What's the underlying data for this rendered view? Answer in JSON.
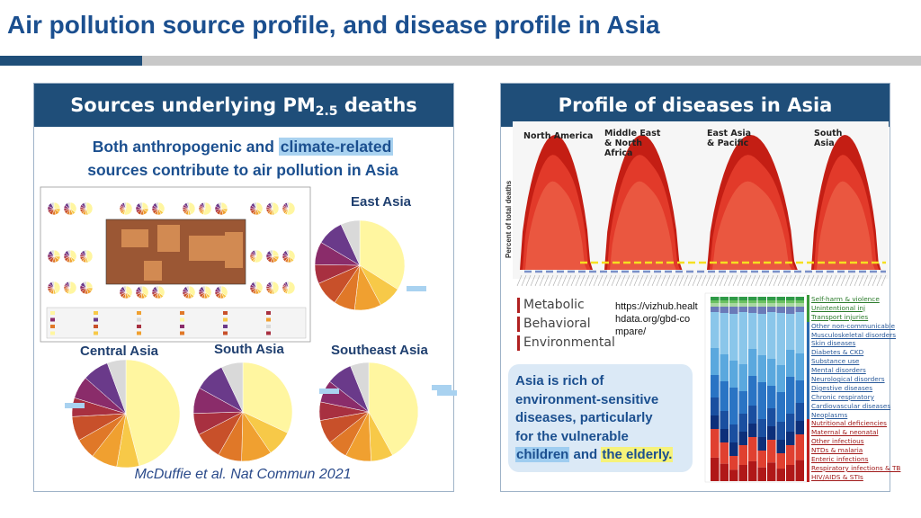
{
  "header": {
    "title": "Air pollution source profile, and disease profile in Asia"
  },
  "left_panel": {
    "heading": {
      "main": "Sources underlying PM",
      "subscript": "2.5",
      "tail": " deaths"
    },
    "subtext": {
      "line1": "Both anthropogenic and",
      "highlight": "climate-related",
      "line2": "sources contribute to air pollution in Asia"
    },
    "regions": [
      "East Asia",
      "Central Asia",
      "South Asia",
      "Southeast Asia"
    ],
    "citation": "McDuffie et al. Nat Commun 2021"
  },
  "right_panel": {
    "heading": "Profile of diseases in Asia",
    "chart_regions": [
      "North America",
      "Middle East & North Africa",
      "East Asia & Pacific",
      "South Asia"
    ],
    "y_axis_label": "Percent of total deaths",
    "legend": [
      "Metabolic",
      "Behavioral",
      "Environmental"
    ],
    "url": "https://vizhub.healthdata.org/gbd-compare/",
    "callout": {
      "lines": [
        "Asia is rich of",
        "environment-sensitive",
        "diseases, particularly",
        "for the vulnerable"
      ],
      "highlight1": "children",
      "joiner": "and",
      "highlight2": "the elderly."
    },
    "diseases": [
      "Self-harm & violence",
      "Unintentional inj",
      "Transport injuries",
      "Other non-communicable",
      "Musculoskeletal disorders",
      "Skin diseases",
      "Diabetes & CKD",
      "Substance use",
      "Mental disorders",
      "Neurological disorders",
      "Digestive diseases",
      "Chronic respiratory",
      "Cardiovascular diseases",
      "Neoplasms",
      "Nutritional deficiencies",
      "Maternal & neonatal",
      "Other infectious",
      "NTDs & malaria",
      "Enteric infections",
      "Respiratory infections & TB",
      "HIV/AIDS & STIs"
    ]
  }
}
